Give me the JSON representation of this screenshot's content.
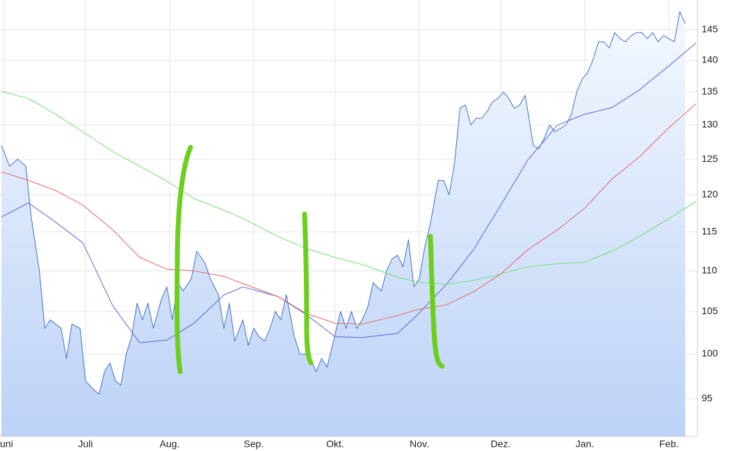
{
  "chart_data": {
    "type": "line",
    "log_scale": true,
    "grid": true,
    "xlim": [
      -1.5,
      255.5
    ],
    "ylim": [
      91,
      150
    ],
    "xticks": [
      {
        "value": 0,
        "label": "Juni"
      },
      {
        "value": 30,
        "label": "Juli"
      },
      {
        "value": 61,
        "label": "Aug."
      },
      {
        "value": 92,
        "label": "Sep."
      },
      {
        "value": 122,
        "label": "Okt."
      },
      {
        "value": 153,
        "label": "Nov."
      },
      {
        "value": 183,
        "label": "Dez."
      },
      {
        "value": 214,
        "label": "Jan."
      },
      {
        "value": 245,
        "label": "Feb."
      }
    ],
    "yticks": [
      95,
      100,
      105,
      110,
      115,
      120,
      125,
      130,
      135,
      140,
      145
    ],
    "series": [
      {
        "color": "#3b6fc4",
        "fill": true,
        "x": [
          -1,
          2,
          5,
          8,
          10,
          13,
          15,
          17,
          21,
          23,
          25,
          28,
          30,
          33,
          35,
          37,
          39,
          41,
          43,
          45,
          47,
          49,
          51,
          53,
          55,
          58,
          60,
          62,
          64,
          66,
          69,
          71,
          74,
          76,
          79,
          81,
          83,
          85,
          88,
          90,
          92,
          94,
          96,
          98,
          100,
          102,
          104,
          107,
          109,
          111,
          113,
          115,
          117,
          119,
          121,
          124,
          126,
          128,
          130,
          132,
          134,
          136,
          139,
          141,
          143,
          145,
          147,
          149,
          151,
          153,
          155,
          157,
          160,
          162,
          164,
          166,
          168,
          170,
          172,
          174,
          176,
          178,
          180,
          182,
          184,
          186,
          188,
          190,
          192,
          193,
          195,
          197,
          199,
          201,
          203,
          205,
          207,
          209,
          211,
          213,
          215,
          217,
          219,
          221,
          223,
          225,
          227,
          229,
          231,
          233,
          235,
          237,
          239,
          241,
          243,
          245,
          247,
          249,
          251
        ],
        "values": [
          127,
          124,
          125,
          124,
          117,
          110,
          103,
          104,
          103,
          99.5,
          103.5,
          103,
          97,
          96,
          95.5,
          98,
          99,
          97,
          96.5,
          100,
          102,
          106,
          104,
          106,
          103,
          106.5,
          108,
          104,
          108.5,
          107.5,
          109,
          112.5,
          111,
          109,
          107,
          103,
          106,
          101.5,
          104,
          101,
          103,
          102,
          101.5,
          103,
          105,
          104,
          107,
          102,
          100,
          100,
          99.5,
          98,
          99.5,
          98.5,
          101,
          105,
          103,
          105,
          103,
          104,
          105.5,
          108.5,
          107.5,
          110,
          111.5,
          112,
          110.5,
          114,
          108,
          109,
          113,
          116,
          122,
          122,
          120,
          124.5,
          132.5,
          133,
          130,
          131,
          131,
          132,
          133.5,
          134,
          135,
          134,
          132.5,
          133,
          134.5,
          132,
          127,
          126.5,
          128,
          130,
          129,
          129.5,
          130,
          131.5,
          135,
          137,
          138,
          140,
          143,
          143,
          142,
          144.5,
          143.5,
          143,
          144,
          144.5,
          144.5,
          143.5,
          144.5,
          143,
          144,
          143.5,
          143,
          148,
          146
        ]
      },
      {
        "color": "#5a63d6",
        "x": [
          -1,
          9,
          19,
          29,
          40,
          50,
          60,
          70,
          81,
          88,
          101,
          111,
          122,
          132,
          145,
          152,
          163,
          173,
          183,
          193,
          204,
          214,
          224,
          234,
          245,
          255
        ],
        "values": [
          117,
          118.9,
          116.3,
          113.6,
          105.7,
          101.3,
          101.6,
          103.6,
          107,
          108,
          106.8,
          104.7,
          102,
          101.9,
          102.4,
          104.5,
          108.3,
          112.7,
          118.6,
          124.9,
          130,
          131.6,
          132.6,
          135.3,
          139.1,
          142.8
        ]
      },
      {
        "color": "#e36464",
        "x": [
          -1,
          9,
          19,
          29,
          40,
          50,
          60,
          70,
          81,
          88,
          101,
          111,
          122,
          132,
          145,
          152,
          163,
          173,
          183,
          193,
          204,
          214,
          224,
          234,
          245,
          255
        ],
        "values": [
          123.2,
          122,
          120.6,
          118.6,
          115.3,
          111.7,
          110.2,
          110,
          109.3,
          108.4,
          106.8,
          104.8,
          103.6,
          103.5,
          104.5,
          105.2,
          105.8,
          107.4,
          109.6,
          112.7,
          115.3,
          118.2,
          122.2,
          125.3,
          129.6,
          133.2
        ]
      },
      {
        "color": "#6ee06e",
        "x": [
          -1,
          9,
          19,
          29,
          40,
          50,
          60,
          70,
          81,
          88,
          101,
          111,
          122,
          132,
          145,
          152,
          163,
          173,
          183,
          193,
          204,
          214,
          224,
          234,
          245,
          255
        ],
        "values": [
          135.1,
          134,
          131.6,
          129,
          126.1,
          124,
          121.9,
          119.5,
          117.9,
          116.8,
          114.4,
          112.9,
          111.7,
          110.8,
          109.2,
          108.6,
          108.3,
          108.8,
          109.6,
          110.5,
          110.9,
          111.1,
          112.5,
          114.4,
          116.8,
          119.1
        ]
      }
    ]
  }
}
